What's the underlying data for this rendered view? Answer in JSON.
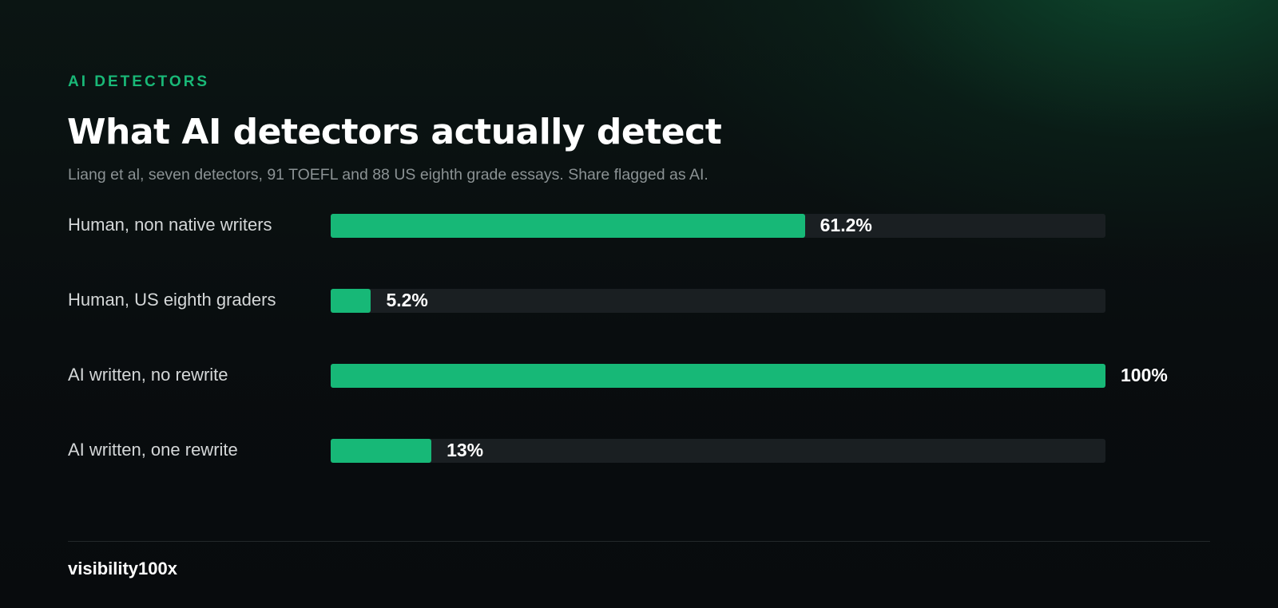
{
  "eyebrow": "AI DETECTORS",
  "colors": {
    "accent": "#17b877",
    "track": "#1a1f22",
    "background": "#090d0f"
  },
  "brand": "visibility100x",
  "chart_data": {
    "type": "bar",
    "orientation": "horizontal",
    "title": "What AI detectors actually detect",
    "subtitle": "Liang et al, seven detectors, 91 TOEFL and 88 US eighth grade essays. Share flagged as AI.",
    "categories": [
      "Human, non native writers",
      "Human, US eighth graders",
      "AI written, no rewrite",
      "AI written, one rewrite"
    ],
    "values": [
      61.2,
      5.2,
      100,
      13
    ],
    "value_labels": [
      "61.2%",
      "5.2%",
      "100%",
      "13%"
    ],
    "xlim": [
      0,
      100
    ],
    "grid": false,
    "legend": "none"
  }
}
